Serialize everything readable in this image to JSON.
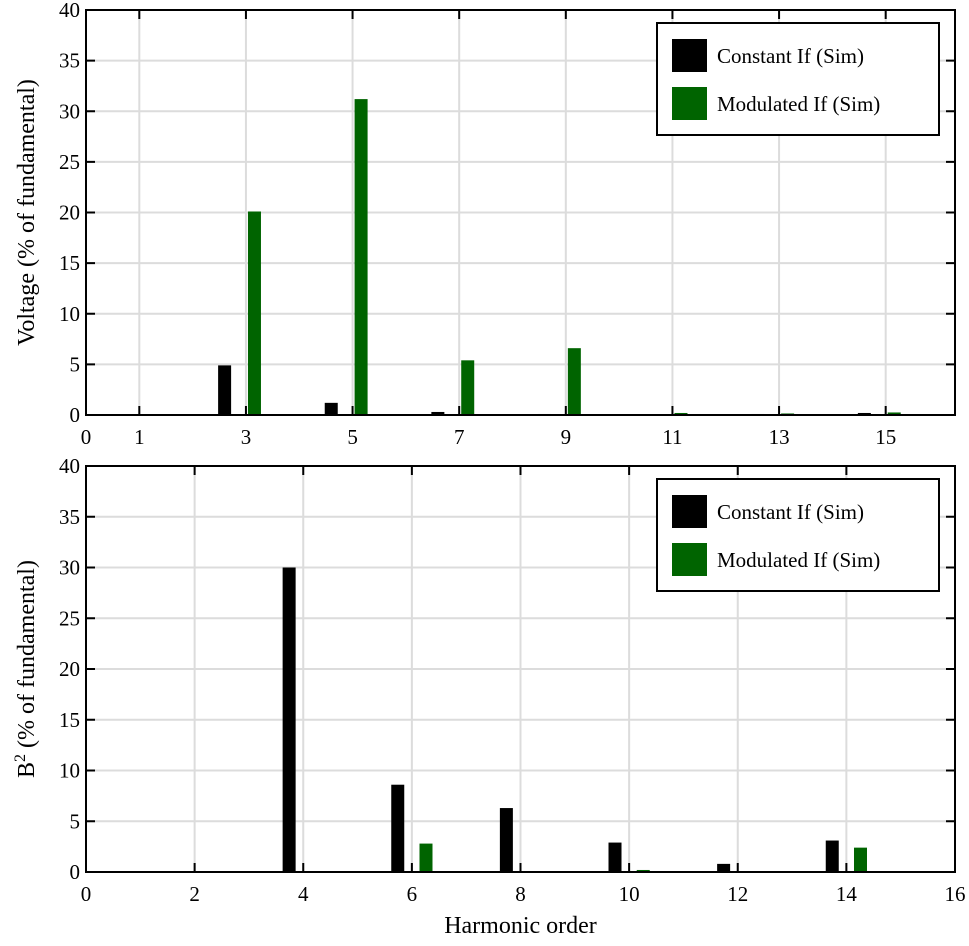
{
  "chart_data": [
    {
      "type": "bar",
      "ylabel": "Voltage (% of fundamental)",
      "xlabel": "",
      "ylim": [
        0,
        40
      ],
      "xlim": [
        0,
        16.3
      ],
      "yticks": [
        0,
        5,
        10,
        15,
        20,
        25,
        30,
        35,
        40
      ],
      "xticks": [
        0,
        1,
        3,
        5,
        7,
        9,
        11,
        13,
        15
      ],
      "grid": true,
      "legend_position": "top-right",
      "series": [
        {
          "name": "Constant If (Sim)",
          "color": "#000000",
          "x": [
            3,
            5,
            7,
            9,
            11,
            13,
            15
          ],
          "values": [
            4.9,
            1.2,
            0.3,
            0.1,
            0.05,
            0.1,
            0.2
          ]
        },
        {
          "name": "Modulated If (Sim)",
          "color": "#006400",
          "x": [
            3,
            5,
            7,
            9,
            11,
            13,
            15
          ],
          "values": [
            20.1,
            31.2,
            5.4,
            6.6,
            0.2,
            0.15,
            0.25
          ]
        }
      ]
    },
    {
      "type": "bar",
      "ylabel": "B² (% of fundamental)",
      "ylabel_base": "B",
      "ylabel_sup": "2",
      "ylabel_rest": " (% of fundamental)",
      "xlabel": "Harmonic order",
      "ylim": [
        0,
        40
      ],
      "xlim": [
        0,
        16
      ],
      "yticks": [
        0,
        5,
        10,
        15,
        20,
        25,
        30,
        35,
        40
      ],
      "xticks": [
        0,
        2,
        4,
        6,
        8,
        10,
        12,
        14,
        16
      ],
      "grid": true,
      "legend_position": "top-right",
      "series": [
        {
          "name": "Constant If (Sim)",
          "color": "#000000",
          "x": [
            4,
            6,
            8,
            10,
            12,
            14
          ],
          "values": [
            30.0,
            8.6,
            6.3,
            2.9,
            0.8,
            3.1
          ]
        },
        {
          "name": "Modulated If (Sim)",
          "color": "#006400",
          "x": [
            4,
            6,
            8,
            10,
            12,
            14
          ],
          "values": [
            0.0,
            2.8,
            0.0,
            0.2,
            0.0,
            2.4
          ]
        }
      ]
    }
  ]
}
